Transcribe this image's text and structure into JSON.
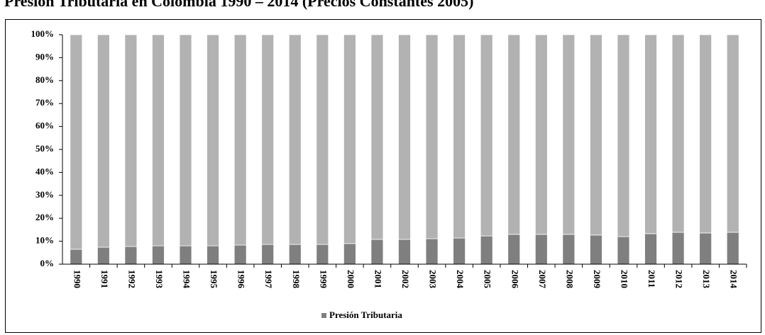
{
  "chart_data": {
    "type": "stacked_bar_100",
    "title": "Presión Tributaria en Colombia 1990 – 2014 (Precios Constantes 2005)",
    "categories": [
      "1990",
      "1991",
      "1992",
      "1993",
      "1994",
      "1995",
      "1996",
      "1997",
      "1998",
      "1999",
      "2000",
      "2001",
      "2002",
      "2003",
      "2004",
      "2005",
      "2006",
      "2007",
      "2008",
      "2009",
      "2010",
      "2011",
      "2012",
      "2013",
      "2014"
    ],
    "series": [
      {
        "name": "Presión Tributaria",
        "color": "#7f7f7f",
        "values": [
          6.5,
          7.4,
          7.7,
          8.0,
          8.0,
          8.0,
          8.3,
          8.6,
          8.6,
          8.6,
          9.0,
          10.8,
          10.8,
          11.1,
          11.4,
          12.3,
          13.0,
          13.0,
          13.0,
          12.7,
          12.0,
          13.3,
          13.9,
          13.6,
          13.9
        ]
      },
      {
        "color": "#b2b2b2",
        "values": [
          93.5,
          92.6,
          92.3,
          92.0,
          92.0,
          92.0,
          91.7,
          91.4,
          91.4,
          91.4,
          91.0,
          89.2,
          89.2,
          88.9,
          88.6,
          87.7,
          87.0,
          87.0,
          87.0,
          87.3,
          88.0,
          86.7,
          86.1,
          86.4,
          86.1
        ]
      }
    ],
    "ylim": [
      0,
      100
    ],
    "yticks": [
      {
        "value": 0,
        "label": "0%"
      },
      {
        "value": 10,
        "label": "10%"
      },
      {
        "value": 20,
        "label": "20%"
      },
      {
        "value": 30,
        "label": "30%"
      },
      {
        "value": 40,
        "label": "40%"
      },
      {
        "value": 50,
        "label": "50%"
      },
      {
        "value": 60,
        "label": "60%"
      },
      {
        "value": 70,
        "label": "70%"
      },
      {
        "value": 80,
        "label": "80%"
      },
      {
        "value": 90,
        "label": "90%"
      },
      {
        "value": 100,
        "label": "100%"
      }
    ],
    "legend": "bottom"
  }
}
